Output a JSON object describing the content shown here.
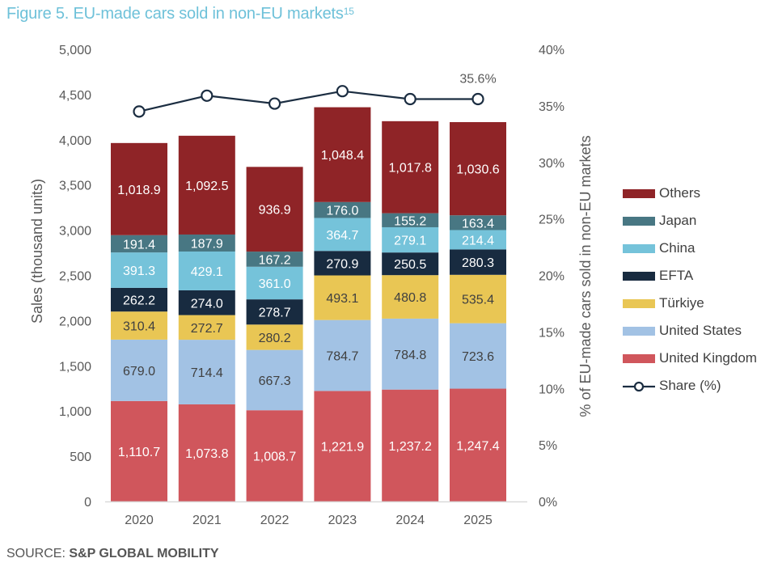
{
  "figure": {
    "title": "Figure 5. EU-made cars sold in non-EU markets",
    "title_superscript": "15",
    "source_prefix": "SOURCE: ",
    "source_name": "S&P GLOBAL MOBILITY"
  },
  "chart_data": {
    "type": "bar",
    "stacked": true,
    "title": "Figure 5. EU-made cars sold in non-EU markets",
    "xlabel": "",
    "ylabel": "Sales (thousand units)",
    "y2label": "% of EU-made cars sold in non-EU markets",
    "ylim": [
      0,
      5000
    ],
    "y2lim": [
      0,
      0.4
    ],
    "yticks": [
      "0",
      "500",
      "1,000",
      "1,500",
      "2,000",
      "2,500",
      "3,000",
      "3,500",
      "4,000",
      "4,500",
      "5,000"
    ],
    "y2ticks": [
      "0%",
      "5%",
      "10%",
      "15%",
      "20%",
      "25%",
      "30%",
      "35%",
      "40%"
    ],
    "categories": [
      "2020",
      "2021",
      "2022",
      "2023",
      "2024",
      "2025"
    ],
    "grid": false,
    "legend_position": "right",
    "series": [
      {
        "name": "United Kingdom",
        "color": "#d0565c",
        "label_color": "#ffffff",
        "values": [
          1110.7,
          1073.8,
          1008.7,
          1221.9,
          1237.2,
          1247.4
        ],
        "labels": [
          "1,110.7",
          "1,073.8",
          "1,008.7",
          "1,221.9",
          "1,237.2",
          "1,247.4"
        ]
      },
      {
        "name": "United States",
        "color": "#a2c2e4",
        "label_color": "#404040",
        "values": [
          679.0,
          714.4,
          667.3,
          784.7,
          784.8,
          723.6
        ],
        "labels": [
          "679.0",
          "714.4",
          "667.3",
          "784.7",
          "784.8",
          "723.6"
        ]
      },
      {
        "name": "Türkiye",
        "color": "#e9c654",
        "label_color": "#404040",
        "values": [
          310.4,
          272.7,
          280.2,
          493.1,
          480.8,
          535.4
        ],
        "labels": [
          "310.4",
          "272.7",
          "280.2",
          "493.1",
          "480.8",
          "535.4"
        ]
      },
      {
        "name": "EFTA",
        "color": "#182b40",
        "label_color": "#ffffff",
        "values": [
          262.2,
          274.0,
          278.7,
          270.9,
          250.5,
          280.3
        ],
        "labels": [
          "262.2",
          "274.0",
          "278.7",
          "270.9",
          "250.5",
          "280.3"
        ]
      },
      {
        "name": "China",
        "color": "#75c3da",
        "label_color": "#ffffff",
        "values": [
          391.3,
          429.1,
          361.0,
          364.7,
          279.1,
          214.4
        ],
        "labels": [
          "391.3",
          "429.1",
          "361.0",
          "364.7",
          "279.1",
          "214.4"
        ]
      },
      {
        "name": "Japan",
        "color": "#487783",
        "label_color": "#ffffff",
        "values": [
          191.4,
          187.9,
          167.2,
          176.0,
          155.2,
          163.4
        ],
        "labels": [
          "191.4",
          "187.9",
          "167.2",
          "176.0",
          "155.2",
          "163.4"
        ]
      },
      {
        "name": "Others",
        "color": "#8f2427",
        "label_color": "#ffffff",
        "values": [
          1018.9,
          1092.5,
          936.9,
          1048.4,
          1017.8,
          1030.6
        ],
        "labels": [
          "1,018.9",
          "1,092.5",
          "936.9",
          "1,048.4",
          "1,017.8",
          "1,030.6"
        ]
      }
    ],
    "line_series": {
      "name": "Share (%)",
      "axis": "right",
      "color": "#1b2d41",
      "values": [
        0.345,
        0.359,
        0.352,
        0.363,
        0.356,
        0.356
      ],
      "annotation": {
        "index": 5,
        "text": "35.6%"
      }
    }
  },
  "legend": {
    "items": [
      {
        "label": "Others",
        "color": "#8f2427",
        "kind": "bar"
      },
      {
        "label": "Japan",
        "color": "#487783",
        "kind": "bar"
      },
      {
        "label": "China",
        "color": "#75c3da",
        "kind": "bar"
      },
      {
        "label": "EFTA",
        "color": "#182b40",
        "kind": "bar"
      },
      {
        "label": "Türkiye",
        "color": "#e9c654",
        "kind": "bar"
      },
      {
        "label": "United States",
        "color": "#a2c2e4",
        "kind": "bar"
      },
      {
        "label": "United Kingdom",
        "color": "#d0565c",
        "kind": "bar"
      },
      {
        "label": "Share (%)",
        "color": "#1b2d41",
        "kind": "line"
      }
    ]
  }
}
